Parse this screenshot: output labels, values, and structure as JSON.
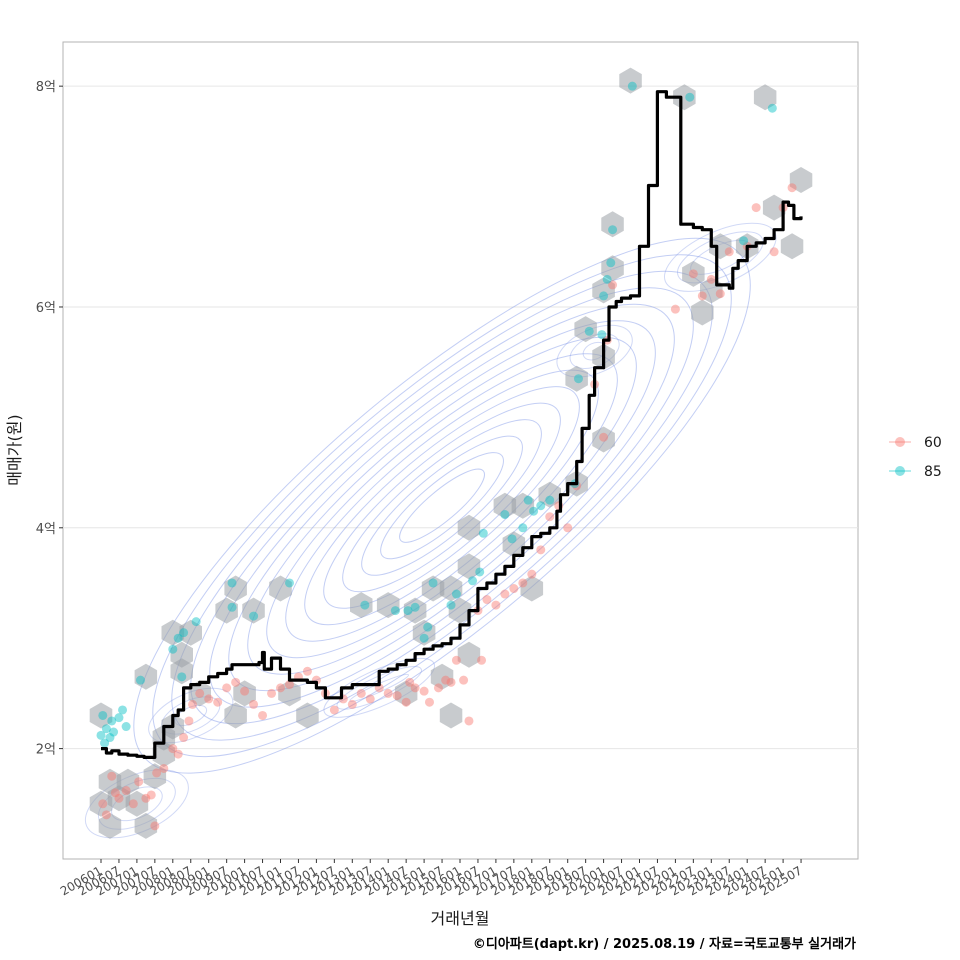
{
  "chart_data": {
    "type": "scatter",
    "title": "",
    "xlabel": "거래년월",
    "ylabel": "매매가(원)",
    "caption": "©디아파트(dapt.kr) / 2025.08.19 / 자료=국토교통부 실거래가",
    "ylim": [
      1.0,
      8.4
    ],
    "xlim": [
      -0.6,
      43.1
    ],
    "y_ticks": [
      {
        "value": 2,
        "label": "2억"
      },
      {
        "value": 4,
        "label": "4억"
      },
      {
        "value": 6,
        "label": "6억"
      },
      {
        "value": 8,
        "label": "8억"
      }
    ],
    "x_ticks": [
      "200601",
      "200607",
      "200701",
      "200707",
      "200801",
      "200807",
      "200901",
      "200907",
      "201001",
      "201007",
      "201101",
      "201107",
      "201201",
      "201207",
      "201301",
      "201307",
      "201401",
      "201407",
      "201501",
      "201507",
      "201601",
      "201607",
      "201701",
      "201707",
      "201801",
      "201807",
      "201901",
      "201907",
      "202001",
      "202007",
      "202101",
      "202107",
      "202201",
      "202207",
      "202301",
      "202307",
      "202401",
      "202407",
      "202501",
      "202507"
    ],
    "legend": {
      "position": "right",
      "entries": [
        {
          "name": "60",
          "color": "#F8766D"
        },
        {
          "name": "85",
          "color": "#00BFC4"
        }
      ]
    },
    "series": [
      {
        "name": "60",
        "color": "#F8766D",
        "points": [
          [
            0.1,
            1.5
          ],
          [
            0.3,
            1.4
          ],
          [
            0.6,
            1.75
          ],
          [
            0.8,
            1.6
          ],
          [
            1.0,
            1.55
          ],
          [
            1.4,
            1.62
          ],
          [
            1.8,
            1.5
          ],
          [
            2.1,
            1.7
          ],
          [
            2.5,
            1.55
          ],
          [
            2.8,
            1.58
          ],
          [
            3.0,
            1.3
          ],
          [
            3.1,
            1.78
          ],
          [
            3.5,
            1.82
          ],
          [
            4.0,
            2.0
          ],
          [
            4.3,
            1.95
          ],
          [
            4.6,
            2.1
          ],
          [
            4.9,
            2.25
          ],
          [
            5.1,
            2.4
          ],
          [
            5.5,
            2.5
          ],
          [
            6.0,
            2.45
          ],
          [
            6.5,
            2.42
          ],
          [
            7.0,
            2.55
          ],
          [
            7.5,
            2.6
          ],
          [
            8.0,
            2.52
          ],
          [
            8.5,
            2.4
          ],
          [
            9.0,
            2.3
          ],
          [
            9.5,
            2.5
          ],
          [
            10.0,
            2.55
          ],
          [
            10.5,
            2.58
          ],
          [
            11.0,
            2.65
          ],
          [
            11.5,
            2.7
          ],
          [
            12.0,
            2.62
          ],
          [
            12.5,
            2.5
          ],
          [
            13.0,
            2.35
          ],
          [
            13.5,
            2.45
          ],
          [
            14.0,
            2.4
          ],
          [
            14.5,
            2.5
          ],
          [
            15.0,
            2.45
          ],
          [
            15.5,
            2.55
          ],
          [
            16.0,
            2.5
          ],
          [
            16.5,
            2.48
          ],
          [
            17.0,
            2.42
          ],
          [
            17.2,
            2.6
          ],
          [
            17.5,
            2.55
          ],
          [
            18.0,
            2.52
          ],
          [
            18.3,
            2.42
          ],
          [
            18.8,
            2.55
          ],
          [
            19.2,
            2.62
          ],
          [
            19.5,
            2.6
          ],
          [
            19.8,
            2.8
          ],
          [
            20.2,
            2.62
          ],
          [
            20.5,
            2.25
          ],
          [
            21.0,
            3.25
          ],
          [
            21.2,
            2.8
          ],
          [
            21.5,
            3.35
          ],
          [
            22.0,
            3.3
          ],
          [
            22.5,
            3.4
          ],
          [
            23.0,
            3.45
          ],
          [
            23.5,
            3.5
          ],
          [
            24.0,
            3.58
          ],
          [
            24.5,
            3.8
          ],
          [
            25.0,
            4.1
          ],
          [
            25.5,
            4.2
          ],
          [
            26.0,
            4.0
          ],
          [
            26.5,
            4.38
          ],
          [
            27.5,
            5.3
          ],
          [
            28.0,
            4.82
          ],
          [
            28.2,
            5.7
          ],
          [
            28.5,
            6.2
          ],
          [
            32.0,
            5.98
          ],
          [
            33.0,
            6.3
          ],
          [
            33.5,
            6.1
          ],
          [
            34.0,
            6.25
          ],
          [
            34.5,
            6.12
          ],
          [
            35.0,
            6.5
          ],
          [
            36.0,
            6.55
          ],
          [
            36.5,
            6.9
          ],
          [
            37.5,
            6.5
          ],
          [
            38.0,
            6.9
          ],
          [
            38.5,
            7.08
          ]
        ]
      },
      {
        "name": "85",
        "color": "#00BFC4",
        "points": [
          [
            0.0,
            2.12
          ],
          [
            0.1,
            2.3
          ],
          [
            0.2,
            2.05
          ],
          [
            0.3,
            2.18
          ],
          [
            0.5,
            2.1
          ],
          [
            0.6,
            2.25
          ],
          [
            0.7,
            2.15
          ],
          [
            1.0,
            2.28
          ],
          [
            1.2,
            2.35
          ],
          [
            1.4,
            2.2
          ],
          [
            2.2,
            2.62
          ],
          [
            4.0,
            2.9
          ],
          [
            4.3,
            3.0
          ],
          [
            4.6,
            3.05
          ],
          [
            5.3,
            3.15
          ],
          [
            4.5,
            2.65
          ],
          [
            7.3,
            3.28
          ],
          [
            7.3,
            3.5
          ],
          [
            8.5,
            3.2
          ],
          [
            10.5,
            3.5
          ],
          [
            14.7,
            3.3
          ],
          [
            16.4,
            3.25
          ],
          [
            17.1,
            3.25
          ],
          [
            17.5,
            3.28
          ],
          [
            18.0,
            3.0
          ],
          [
            18.2,
            3.1
          ],
          [
            18.5,
            3.5
          ],
          [
            19.5,
            3.3
          ],
          [
            19.8,
            3.4
          ],
          [
            20.7,
            3.52
          ],
          [
            21.1,
            3.6
          ],
          [
            21.3,
            3.95
          ],
          [
            22.5,
            4.12
          ],
          [
            22.9,
            3.9
          ],
          [
            23.5,
            4.0
          ],
          [
            23.8,
            4.25
          ],
          [
            24.1,
            4.15
          ],
          [
            24.5,
            4.2
          ],
          [
            25.0,
            4.25
          ],
          [
            26.4,
            4.4
          ],
          [
            26.6,
            5.35
          ],
          [
            27.2,
            5.78
          ],
          [
            27.9,
            5.75
          ],
          [
            28.0,
            6.1
          ],
          [
            28.2,
            6.25
          ],
          [
            28.4,
            6.4
          ],
          [
            28.5,
            6.7
          ],
          [
            29.6,
            8.0
          ],
          [
            32.8,
            7.9
          ],
          [
            37.4,
            7.8
          ],
          [
            35.8,
            6.6
          ]
        ]
      }
    ],
    "trend_line": {
      "name": "median",
      "color": "#000000",
      "points": [
        [
          0,
          2.0
        ],
        [
          0.3,
          1.96
        ],
        [
          0.6,
          1.98
        ],
        [
          1.0,
          1.95
        ],
        [
          1.5,
          1.94
        ],
        [
          2.0,
          1.93
        ],
        [
          2.4,
          1.92
        ],
        [
          2.7,
          1.92
        ],
        [
          3.0,
          2.05
        ],
        [
          3.5,
          2.2
        ],
        [
          4.0,
          2.3
        ],
        [
          4.3,
          2.35
        ],
        [
          4.6,
          2.55
        ],
        [
          5.0,
          2.58
        ],
        [
          5.5,
          2.6
        ],
        [
          6.0,
          2.65
        ],
        [
          6.5,
          2.68
        ],
        [
          7.0,
          2.72
        ],
        [
          7.3,
          2.76
        ],
        [
          7.5,
          2.76
        ],
        [
          8.0,
          2.76
        ],
        [
          8.5,
          2.76
        ],
        [
          8.8,
          2.78
        ],
        [
          9.0,
          2.87
        ],
        [
          9.1,
          2.72
        ],
        [
          9.5,
          2.82
        ],
        [
          10.0,
          2.72
        ],
        [
          10.5,
          2.62
        ],
        [
          11.0,
          2.62
        ],
        [
          11.5,
          2.6
        ],
        [
          12.0,
          2.55
        ],
        [
          12.5,
          2.46
        ],
        [
          13.0,
          2.46
        ],
        [
          13.4,
          2.55
        ],
        [
          14.0,
          2.58
        ],
        [
          14.5,
          2.58
        ],
        [
          15.0,
          2.58
        ],
        [
          15.5,
          2.7
        ],
        [
          16.0,
          2.72
        ],
        [
          16.5,
          2.76
        ],
        [
          17.0,
          2.8
        ],
        [
          17.5,
          2.86
        ],
        [
          18.0,
          2.9
        ],
        [
          18.5,
          2.93
        ],
        [
          19.0,
          2.95
        ],
        [
          19.5,
          3.0
        ],
        [
          20.0,
          3.12
        ],
        [
          20.5,
          3.25
        ],
        [
          21.0,
          3.45
        ],
        [
          21.5,
          3.5
        ],
        [
          22.0,
          3.58
        ],
        [
          22.5,
          3.65
        ],
        [
          23.0,
          3.75
        ],
        [
          23.5,
          3.82
        ],
        [
          24.0,
          3.92
        ],
        [
          24.5,
          3.95
        ],
        [
          25.0,
          4.0
        ],
        [
          25.4,
          4.15
        ],
        [
          25.6,
          4.3
        ],
        [
          26.0,
          4.4
        ],
        [
          26.5,
          4.6
        ],
        [
          26.8,
          4.9
        ],
        [
          27.2,
          5.2
        ],
        [
          27.5,
          5.45
        ],
        [
          28.0,
          5.7
        ],
        [
          28.3,
          6.0
        ],
        [
          28.7,
          6.05
        ],
        [
          29.0,
          6.08
        ],
        [
          29.5,
          6.1
        ],
        [
          30.0,
          6.55
        ],
        [
          30.5,
          7.1
        ],
        [
          31.0,
          7.95
        ],
        [
          31.5,
          7.9
        ],
        [
          32.0,
          7.9
        ],
        [
          32.3,
          6.75
        ],
        [
          33.0,
          6.72
        ],
        [
          33.5,
          6.7
        ],
        [
          34.0,
          6.55
        ],
        [
          34.3,
          6.2
        ],
        [
          35.0,
          6.17
        ],
        [
          35.2,
          6.35
        ],
        [
          35.5,
          6.42
        ],
        [
          36.0,
          6.55
        ],
        [
          36.5,
          6.58
        ],
        [
          37.0,
          6.62
        ],
        [
          37.5,
          6.7
        ],
        [
          38.0,
          6.95
        ],
        [
          38.3,
          6.92
        ],
        [
          38.6,
          6.8
        ],
        [
          39.0,
          6.82
        ]
      ]
    },
    "hex_bins": [
      [
        0,
        2.3
      ],
      [
        0,
        1.5
      ],
      [
        0.5,
        1.7
      ],
      [
        0.5,
        1.3
      ],
      [
        1.0,
        1.55
      ],
      [
        1.5,
        1.7
      ],
      [
        2.0,
        1.5
      ],
      [
        2.5,
        1.3
      ],
      [
        2.5,
        2.65
      ],
      [
        3.0,
        1.75
      ],
      [
        3.5,
        1.95
      ],
      [
        3.5,
        2.1
      ],
      [
        4.0,
        2.2
      ],
      [
        4.0,
        3.05
      ],
      [
        4.5,
        2.85
      ],
      [
        4.5,
        2.7
      ],
      [
        5.0,
        3.05
      ],
      [
        5.5,
        2.5
      ],
      [
        7.0,
        3.25
      ],
      [
        7.5,
        3.45
      ],
      [
        7.5,
        2.3
      ],
      [
        8.0,
        2.5
      ],
      [
        8.5,
        3.25
      ],
      [
        10.0,
        3.45
      ],
      [
        10.5,
        2.5
      ],
      [
        11.5,
        2.3
      ],
      [
        14.5,
        3.3
      ],
      [
        16.0,
        3.3
      ],
      [
        17.0,
        2.5
      ],
      [
        17.5,
        3.25
      ],
      [
        18.0,
        3.05
      ],
      [
        18.5,
        3.45
      ],
      [
        19.0,
        2.65
      ],
      [
        19.5,
        3.45
      ],
      [
        19.5,
        2.3
      ],
      [
        20.0,
        3.25
      ],
      [
        20.5,
        2.85
      ],
      [
        20.5,
        3.65
      ],
      [
        20.5,
        4.0
      ],
      [
        22.5,
        4.2
      ],
      [
        23.0,
        3.85
      ],
      [
        23.5,
        4.2
      ],
      [
        24.0,
        3.45
      ],
      [
        25.0,
        4.3
      ],
      [
        26.5,
        4.4
      ],
      [
        26.5,
        5.35
      ],
      [
        27.0,
        5.8
      ],
      [
        28.0,
        6.15
      ],
      [
        28.0,
        5.55
      ],
      [
        28.0,
        4.8
      ],
      [
        28.5,
        6.35
      ],
      [
        28.5,
        6.75
      ],
      [
        29.5,
        8.05
      ],
      [
        32.5,
        7.9
      ],
      [
        33.0,
        6.3
      ],
      [
        33.5,
        5.95
      ],
      [
        34.0,
        6.15
      ],
      [
        34.5,
        6.55
      ],
      [
        36.0,
        6.55
      ],
      [
        37.0,
        7.9
      ],
      [
        37.5,
        6.9
      ],
      [
        38.5,
        6.55
      ],
      [
        39.0,
        7.15
      ]
    ]
  }
}
